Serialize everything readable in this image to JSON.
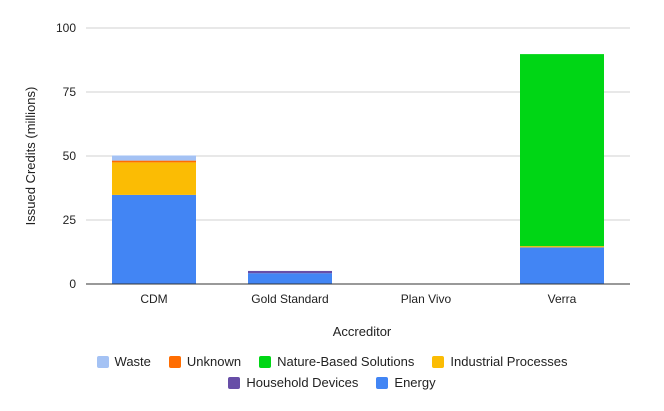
{
  "chart_data": {
    "type": "bar",
    "stacked": true,
    "title": "",
    "xlabel": "Accreditor",
    "ylabel": "Issued Credits (millions)",
    "ylim": [
      0,
      100
    ],
    "yticks": [
      0,
      25,
      50,
      75,
      100
    ],
    "grid": true,
    "legend_position": "bottom",
    "categories": [
      "CDM",
      "Gold Standard",
      "Plan Vivo",
      "Verra"
    ],
    "series": [
      {
        "name": "Energy",
        "color": "#4285f4",
        "values": [
          34.8,
          4.2,
          0,
          14.3
        ]
      },
      {
        "name": "Household Devices",
        "color": "#674ea7",
        "values": [
          0,
          0.9,
          0,
          0
        ]
      },
      {
        "name": "Industrial Processes",
        "color": "#fbbc04",
        "values": [
          12.7,
          0,
          0,
          0.5
        ]
      },
      {
        "name": "Nature-Based Solutions",
        "color": "#00d615",
        "values": [
          0,
          0,
          0,
          75
        ]
      },
      {
        "name": "Unknown",
        "color": "#ff6d01",
        "values": [
          0.7,
          0,
          0,
          0
        ]
      },
      {
        "name": "Waste",
        "color": "#a4c2f4",
        "values": [
          2,
          0,
          0,
          0
        ]
      }
    ],
    "legend_rows": [
      [
        "Waste",
        "Unknown",
        "Nature-Based Solutions",
        "Industrial Processes"
      ],
      [
        "Household Devices",
        "Energy"
      ]
    ]
  }
}
